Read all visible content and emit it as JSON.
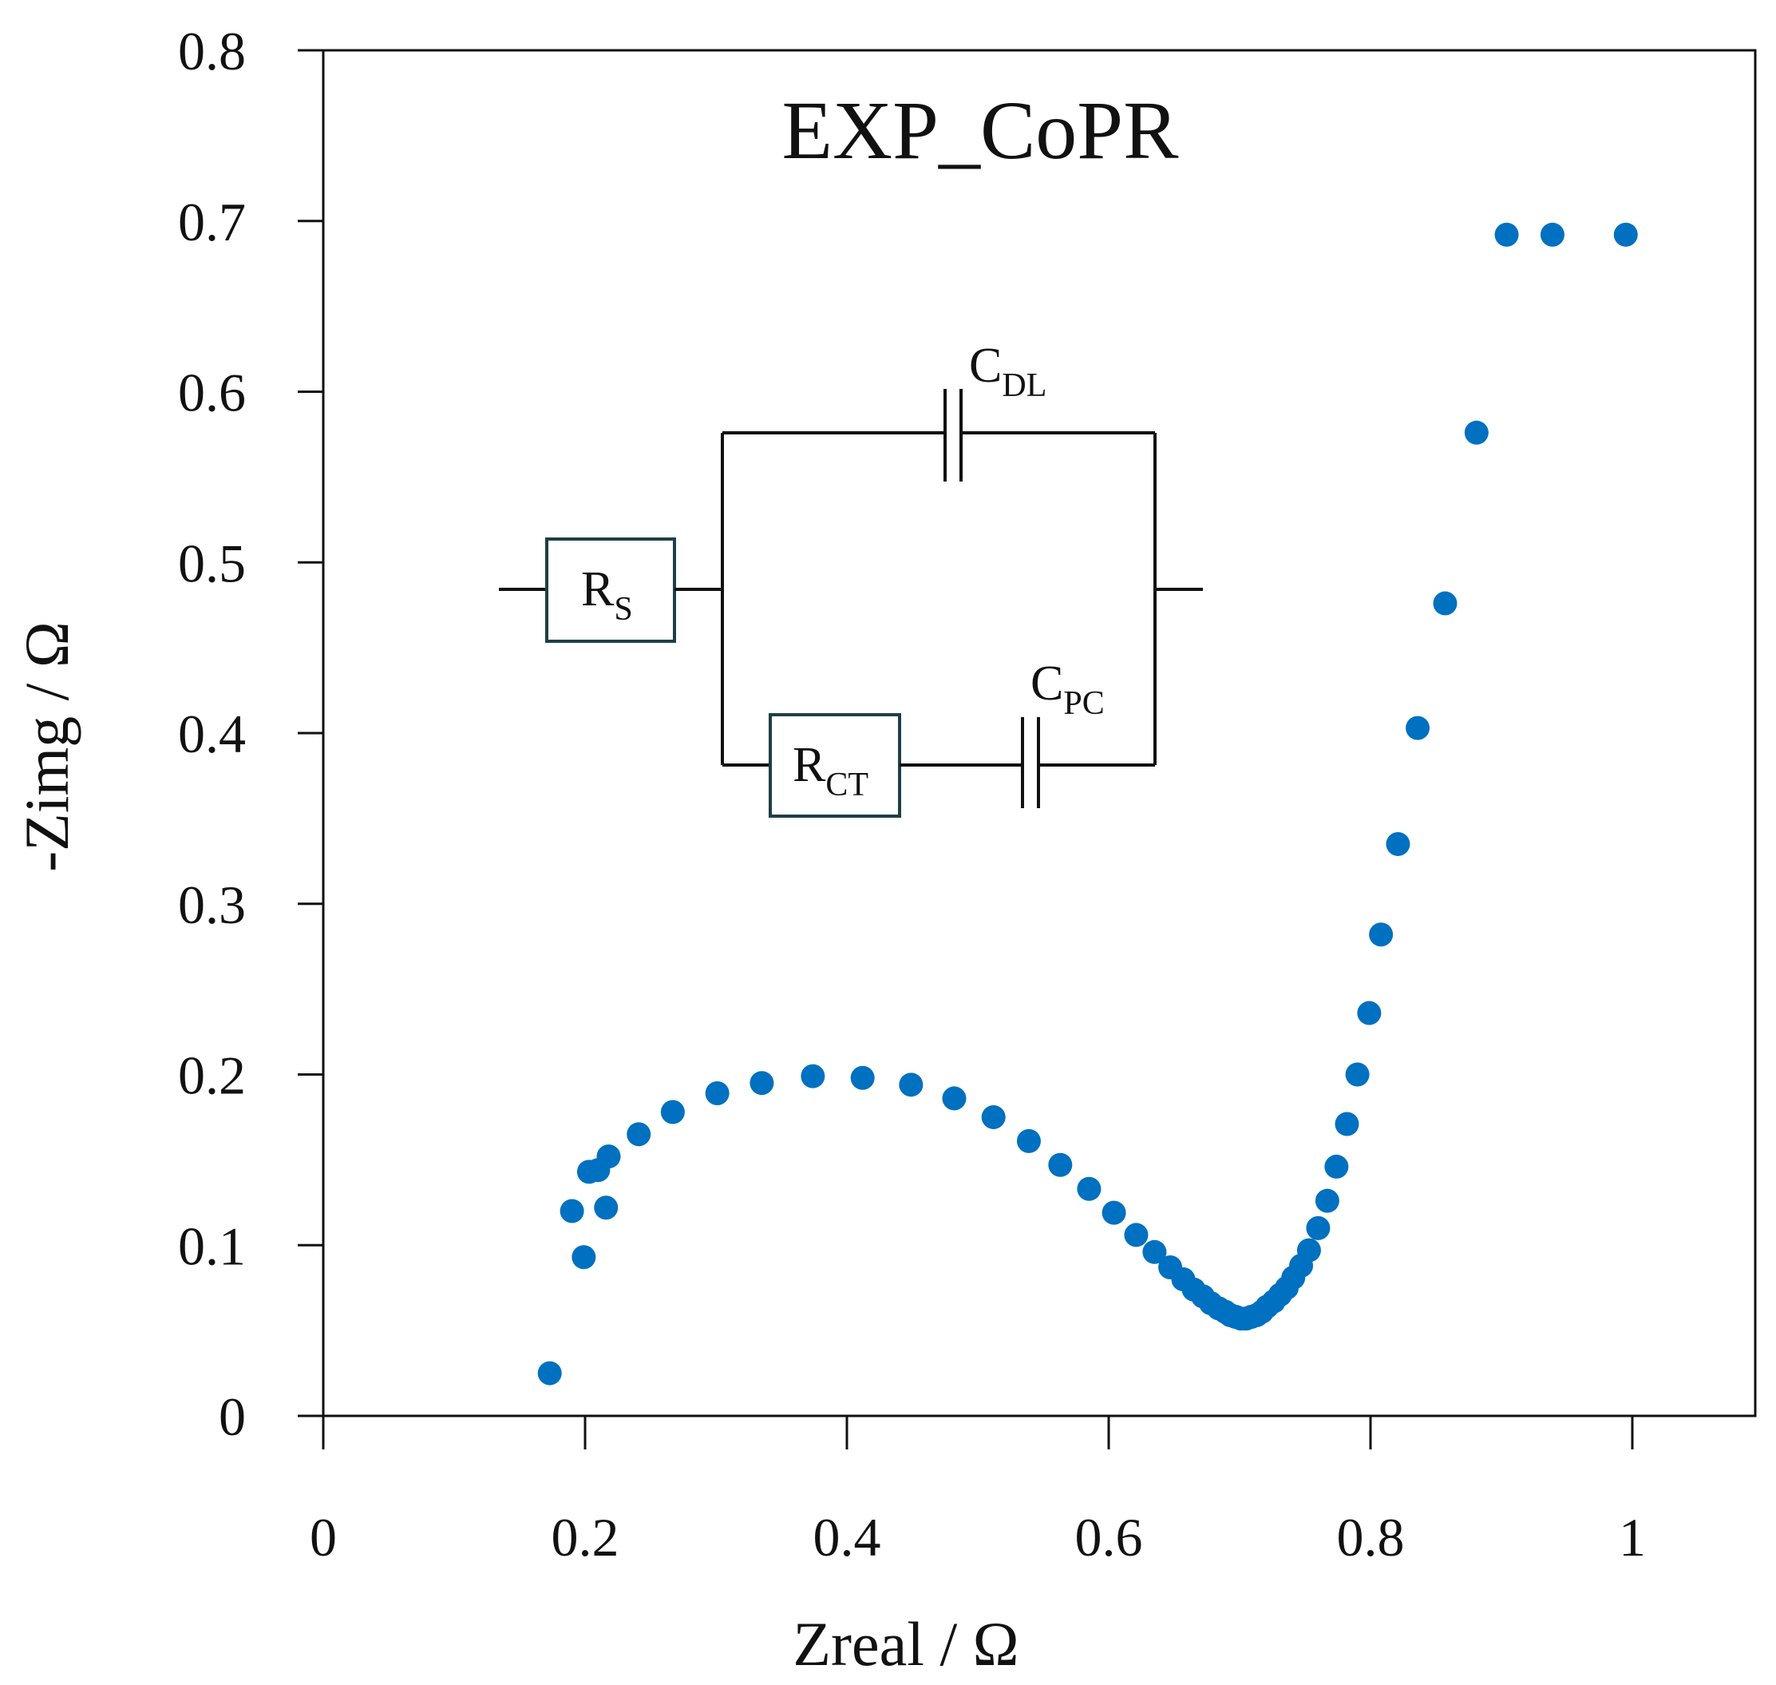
{
  "chart_data": {
    "type": "scatter",
    "title": "EXP_CoPR",
    "xlabel": "Zreal / Ω",
    "ylabel": "-Zimg / Ω",
    "xlim": [
      0,
      1.1
    ],
    "ylim": [
      0,
      0.8
    ],
    "xticks": [
      0,
      0.2,
      0.4,
      0.6,
      0.8,
      1
    ],
    "xtick_labels": [
      "0",
      "0.2",
      "0.4",
      "0.6",
      "0.8",
      "1"
    ],
    "yticks": [
      0,
      0.1,
      0.2,
      0.3,
      0.4,
      0.5,
      0.6,
      0.7,
      0.8
    ],
    "ytick_labels": [
      "0",
      "0.1",
      "0.2",
      "0.3",
      "0.4",
      "0.5",
      "0.6",
      "0.7",
      "0.8"
    ],
    "grid": false,
    "marker_color": "#0070c0",
    "series": [
      {
        "name": "EXP_CoPR",
        "x": [
          0.173,
          0.199,
          0.19,
          0.203,
          0.21,
          0.216,
          0.218,
          0.241,
          0.267,
          0.301,
          0.335,
          0.374,
          0.412,
          0.449,
          0.482,
          0.512,
          0.539,
          0.563,
          0.585,
          0.604,
          0.621,
          0.635,
          0.647,
          0.657,
          0.665,
          0.672,
          0.678,
          0.684,
          0.689,
          0.693,
          0.697,
          0.701,
          0.705,
          0.709,
          0.713,
          0.717,
          0.721,
          0.726,
          0.731,
          0.736,
          0.741,
          0.747,
          0.753,
          0.76,
          0.767,
          0.774,
          0.782,
          0.79,
          0.799,
          0.808,
          0.821,
          0.836,
          0.857,
          0.881,
          0.904,
          0.939,
          0.995
        ],
        "y": [
          0.025,
          0.093,
          0.12,
          0.143,
          0.144,
          0.122,
          0.152,
          0.165,
          0.178,
          0.189,
          0.195,
          0.199,
          0.198,
          0.194,
          0.186,
          0.175,
          0.161,
          0.147,
          0.133,
          0.119,
          0.106,
          0.096,
          0.087,
          0.08,
          0.074,
          0.07,
          0.066,
          0.063,
          0.061,
          0.059,
          0.058,
          0.057,
          0.057,
          0.058,
          0.059,
          0.061,
          0.064,
          0.067,
          0.071,
          0.075,
          0.081,
          0.088,
          0.097,
          0.11,
          0.126,
          0.146,
          0.171,
          0.2,
          0.236,
          0.282,
          0.335,
          0.403,
          0.476,
          0.576,
          0.692,
          0.692,
          0.692
        ]
      }
    ]
  },
  "circuit": {
    "rs_main": "R",
    "rs_sub": "S",
    "rct_main": "R",
    "rct_sub": "CT",
    "cdl_main": "C",
    "cdl_sub": "DL",
    "cpc_main": "C",
    "cpc_sub": "PC"
  }
}
